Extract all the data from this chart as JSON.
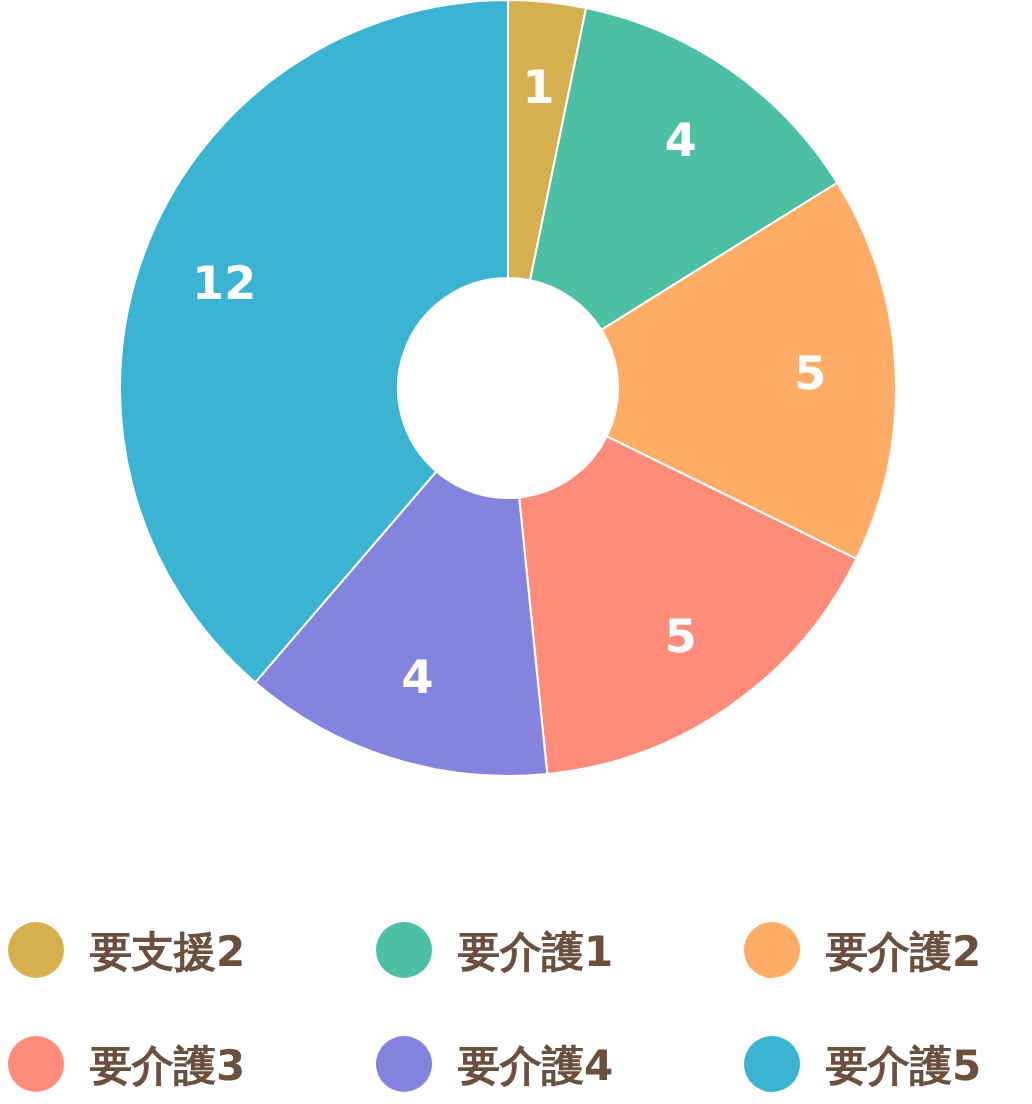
{
  "chart_data": {
    "type": "donut",
    "categories": [
      "要支援2",
      "要介護1",
      "要介護2",
      "要介護3",
      "要介護4",
      "要介護5"
    ],
    "values": [
      1,
      4,
      5,
      5,
      4,
      12
    ],
    "colors": [
      "#d6b04e",
      "#4cbfa5",
      "#ffad66",
      "#ff8b7b",
      "#8483de",
      "#3bb4d4"
    ],
    "data_labels": true,
    "legend": "bottom"
  }
}
